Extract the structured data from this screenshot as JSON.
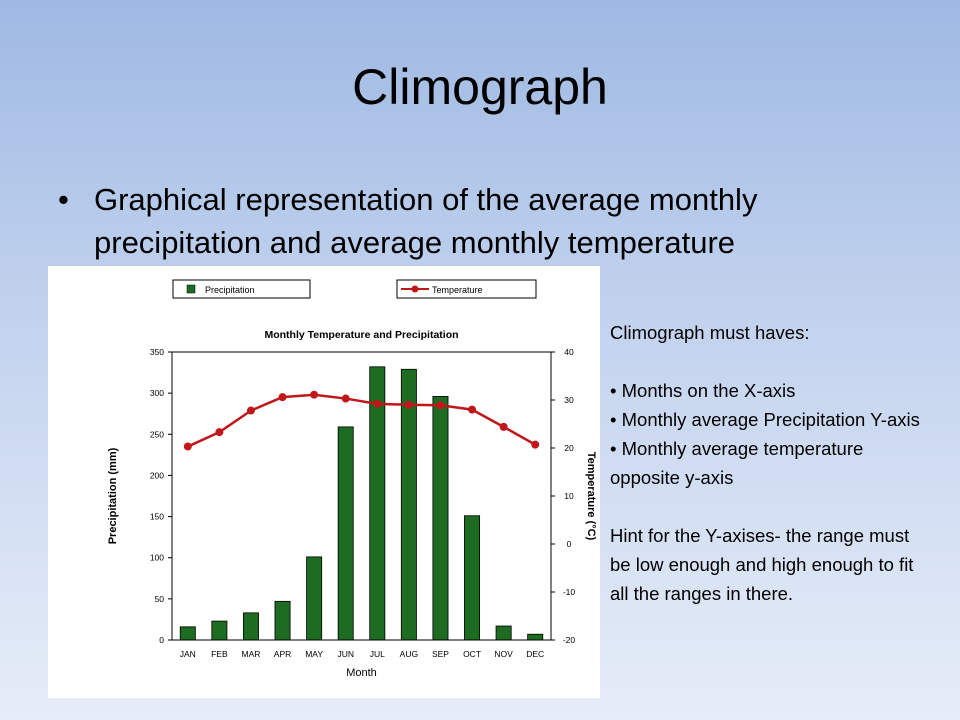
{
  "slide": {
    "title": "Climograph",
    "bullet": "Graphical representation of the average monthly precipitation and average monthly temperature",
    "notes": {
      "heading": "Climograph must haves:",
      "items": [
        "Months on the X-axis",
        "Monthly average Precipitation Y-axis",
        "Monthly average temperature opposite y-axis"
      ],
      "hint": "Hint for the Y-axises- the range must be low enough and high enough to fit all the ranges in there."
    }
  },
  "chart_data": {
    "type": "bar",
    "title": "Monthly Temperature and Precipitation",
    "xlabel": "Month",
    "ylabel": "Precipitation (mm)",
    "y2label": "Temperature (°C)",
    "categories": [
      "JAN",
      "FEB",
      "MAR",
      "APR",
      "MAY",
      "JUN",
      "JUL",
      "AUG",
      "SEP",
      "OCT",
      "NOV",
      "DEC"
    ],
    "ylim": [
      0,
      350
    ],
    "y_ticks": [
      0,
      50,
      100,
      150,
      200,
      250,
      300,
      350
    ],
    "y2lim": [
      -20,
      40
    ],
    "y2_ticks": [
      -20,
      -10,
      0,
      10,
      20,
      30,
      40
    ],
    "legend_placement": "top",
    "series": [
      {
        "name": "Precipitation",
        "type": "bar",
        "axis": "left",
        "color": "#1e6b22",
        "values": [
          16,
          23,
          33,
          47,
          101,
          259,
          332,
          329,
          296,
          151,
          17,
          7
        ]
      },
      {
        "name": "Temperature",
        "type": "line",
        "axis": "right",
        "color": "#c0171b",
        "values": [
          20.3,
          23.3,
          27.8,
          30.6,
          31.1,
          30.3,
          29.2,
          29.0,
          28.9,
          28.0,
          24.4,
          20.7
        ]
      }
    ]
  }
}
